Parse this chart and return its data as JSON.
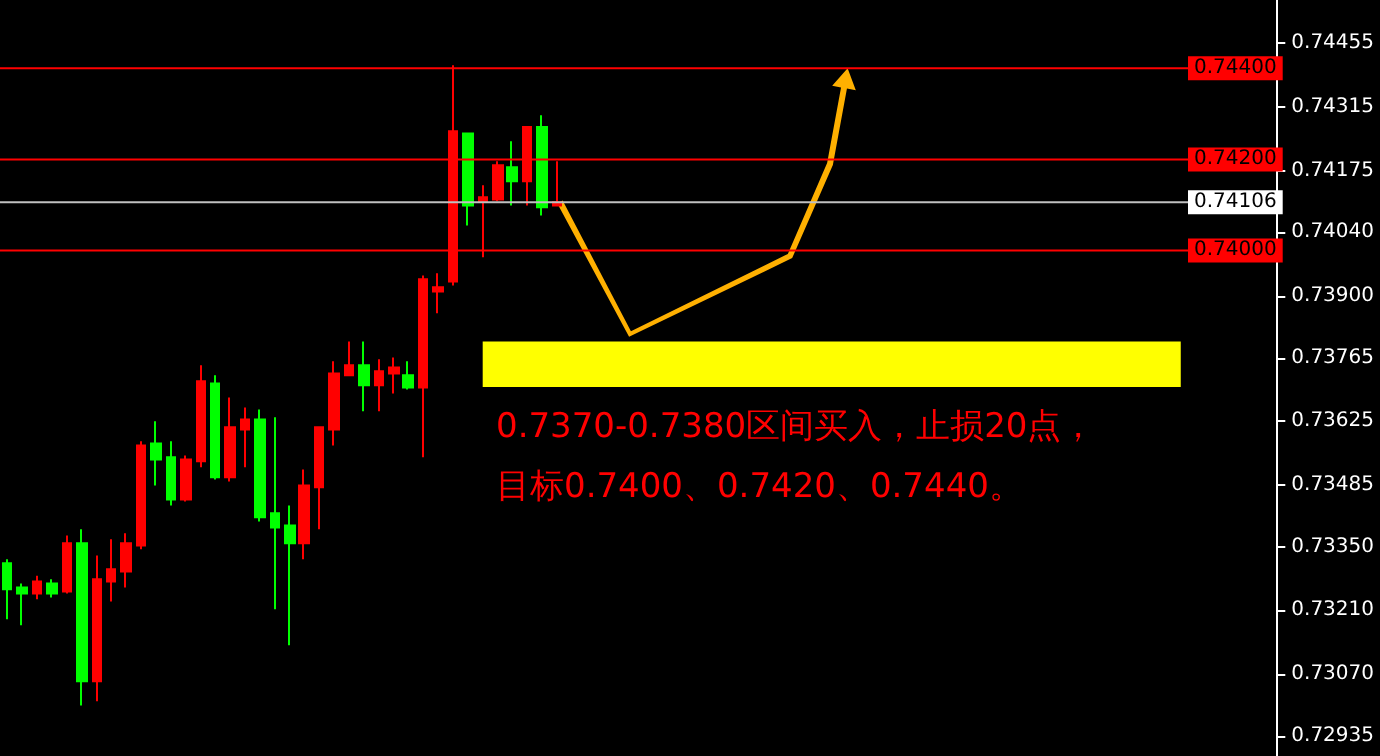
{
  "chart_data": {
    "type": "candlestick",
    "categories": [
      null,
      null,
      null,
      null,
      null,
      null,
      null,
      null,
      null,
      null,
      null,
      null,
      null,
      null,
      null,
      null,
      null,
      null,
      null,
      null,
      null,
      null,
      null,
      null,
      null,
      null,
      null,
      null,
      null,
      null,
      null,
      null,
      null,
      null,
      null,
      null,
      null,
      null,
      null,
      null,
      null,
      null,
      null,
      null,
      null,
      null,
      null,
      null,
      null,
      null,
      null,
      null,
      null,
      null,
      null,
      null,
      null,
      null,
      null,
      null,
      null,
      null,
      null,
      null,
      null,
      null,
      null,
      null,
      null,
      null,
      null,
      null,
      null,
      null,
      null,
      null,
      null,
      null,
      null,
      null,
      null,
      null,
      null,
      null,
      null,
      null
    ],
    "ohlc": [
      [
        0.73313,
        0.73322,
        0.7319,
        0.73256
      ],
      [
        0.7326,
        0.73269,
        0.73177,
        0.73247
      ],
      [
        0.73247,
        0.73286,
        0.73234,
        0.73273
      ],
      [
        0.73269,
        0.73278,
        0.73238,
        0.73247
      ],
      [
        0.73251,
        0.73374,
        0.73247,
        0.73357
      ],
      [
        0.73357,
        0.73388,
        0.73001,
        0.73054
      ],
      [
        0.73054,
        0.7333,
        0.7301,
        0.73278
      ],
      [
        0.73273,
        0.73366,
        0.73229,
        0.733
      ],
      [
        0.73295,
        0.73379,
        0.7326,
        0.73357
      ],
      [
        0.73352,
        0.73581,
        0.73344,
        0.73572
      ],
      [
        0.73576,
        0.73625,
        0.73484,
        0.73541
      ],
      [
        0.73546,
        0.73581,
        0.7344,
        0.73453
      ],
      [
        0.73453,
        0.7355,
        0.73449,
        0.73541
      ],
      [
        0.73537,
        0.73748,
        0.73524,
        0.73713
      ],
      [
        0.73708,
        0.73726,
        0.73497,
        0.73502
      ],
      [
        0.73502,
        0.73677,
        0.73493,
        0.73612
      ],
      [
        0.73607,
        0.73655,
        0.73524,
        0.73629
      ],
      [
        0.73629,
        0.73651,
        0.73405,
        0.73414
      ],
      [
        0.73423,
        0.73634,
        0.73212,
        0.73392
      ],
      [
        0.73396,
        0.7344,
        0.73133,
        0.73357
      ],
      [
        0.73357,
        0.73519,
        0.73322,
        0.73484
      ],
      [
        0.7348,
        0.73612,
        0.73388,
        0.73612
      ],
      [
        0.73607,
        0.73757,
        0.73572,
        0.7373
      ],
      [
        0.73726,
        0.738,
        0.73726,
        0.73748
      ],
      [
        0.73748,
        0.738,
        0.73647,
        0.73704
      ],
      [
        0.73704,
        0.73761,
        0.73647,
        0.73735
      ],
      [
        0.7373,
        0.73765,
        0.73686,
        0.73743
      ],
      [
        0.73726,
        0.73757,
        0.73695,
        0.73699
      ],
      [
        0.73699,
        0.73945,
        0.73546,
        0.73937
      ],
      [
        0.7391,
        0.7395,
        0.73862,
        0.73919
      ],
      [
        0.73932,
        0.74407,
        0.73923,
        0.74262
      ],
      [
        0.74257,
        0.74257,
        0.74055,
        0.74099
      ],
      [
        0.74108,
        0.74143,
        0.73985,
        0.74117
      ],
      [
        0.74112,
        0.74196,
        0.74108,
        0.74187
      ],
      [
        0.74183,
        0.7424,
        0.74099,
        0.74152
      ],
      [
        0.74152,
        0.74271,
        0.74099,
        0.74271
      ],
      [
        0.74271,
        0.74297,
        0.74077,
        0.74095
      ],
      [
        0.74099,
        0.74196,
        0.74099,
        0.74106
      ],
      null,
      null,
      null,
      null,
      null,
      null,
      null,
      null,
      null,
      null,
      null,
      null,
      null,
      null,
      null,
      null,
      null,
      null,
      null,
      null,
      null,
      null,
      null,
      null,
      null,
      null,
      null,
      null,
      null,
      null,
      null,
      null,
      null,
      null,
      null,
      null,
      null,
      null,
      null,
      null,
      null,
      null,
      null,
      null,
      null,
      null,
      null,
      null
    ],
    "colors": [
      "#00ff00",
      "#00ff00",
      "#ff0000",
      "#00ff00",
      "#ff0000",
      "#00ff00",
      "#ff0000",
      "#ff0000",
      "#ff0000",
      "#ff0000",
      "#00ff00",
      "#00ff00",
      "#ff0000",
      "#ff0000",
      "#00ff00",
      "#ff0000",
      "#ff0000",
      "#00ff00",
      "#00ff00",
      "#00ff00",
      "#ff0000",
      "#ff0000",
      "#ff0000",
      "#ff0000",
      "#00ff00",
      "#ff0000",
      "#ff0000",
      "#00ff00",
      "#ff0000",
      "#ff0000",
      "#ff0000",
      "#00ff00",
      "#ff0000",
      "#ff0000",
      "#00ff00",
      "#ff0000",
      "#00ff00",
      "#ff0000",
      null,
      null,
      null,
      null,
      null,
      null,
      null,
      null,
      null,
      null,
      null,
      null,
      null,
      null,
      null,
      null,
      null,
      null,
      null,
      null,
      null,
      null,
      null,
      null,
      null,
      null,
      null,
      null,
      null,
      null,
      null,
      null,
      null,
      null,
      null,
      null,
      null,
      null,
      null,
      null,
      null,
      null,
      null,
      null,
      null,
      null,
      null,
      null
    ],
    "ylim": [
      0.7289,
      0.7455
    ],
    "yticks": [
      0.74455,
      0.74315,
      0.74175,
      {
        "value": 0.7404,
        "label": "0.74040"
      },
      {
        "value": 0.739,
        "label": "0.73900"
      },
      0.73765,
      0.73625,
      0.73485,
      {
        "value": 0.7335,
        "label": "0.73350"
      },
      {
        "value": 0.7321,
        "label": "0.73210"
      },
      {
        "value": 0.7307,
        "label": "0.73070"
      },
      0.72935
    ],
    "ref_lines": [
      {
        "axis": "y",
        "value": 0.744,
        "label": "0.74400",
        "color": "#ff0000"
      },
      {
        "axis": "y",
        "value": 0.742,
        "label": "0.74200",
        "color": "#ff0000"
      },
      {
        "axis": "y",
        "value": 0.74106,
        "label": "0.74106",
        "color": "#c0c0c0"
      },
      {
        "axis": "y",
        "value": 0.74,
        "label": "0.74000",
        "color": "#ff0000"
      }
    ],
    "bands": [
      {
        "axis": "y",
        "from": 0.737,
        "to": 0.738,
        "color": "#ffff00"
      }
    ],
    "annotations": [
      "0.7370-0.7380区间买入，止损20点，",
      "目标0.7400、0.7420、0.7440。"
    ],
    "grid": false
  }
}
